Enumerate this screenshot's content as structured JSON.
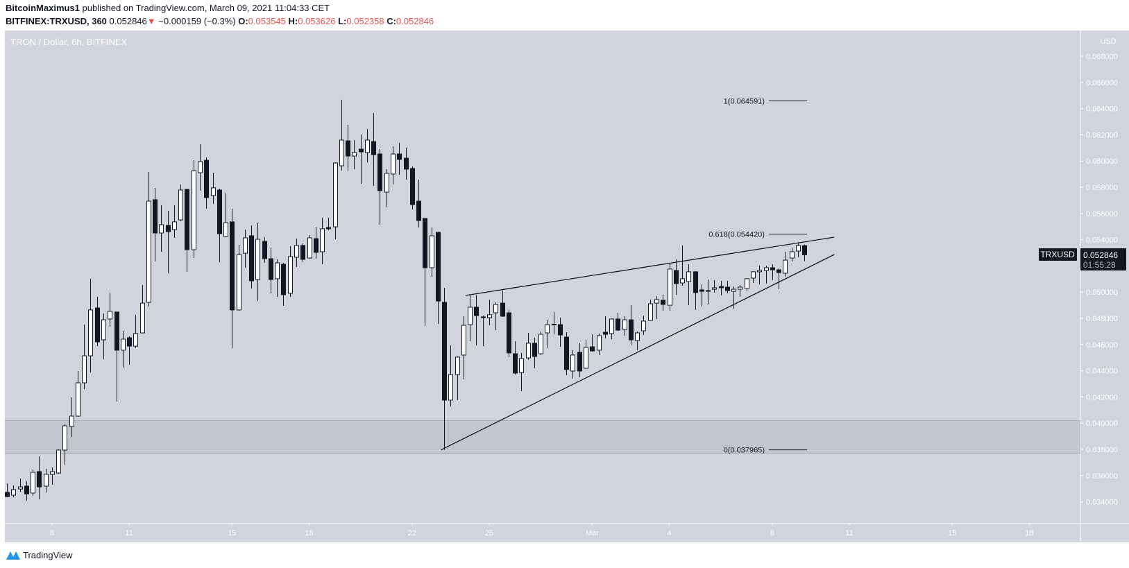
{
  "header": {
    "author": "BitcoinMaximus1",
    "published": "published on TradingView.com, March 09, 2021 11:04:33 CET",
    "symbol": "BITFINEX:TRXUSD, 360",
    "last": "0.052846",
    "change": "−0.000159 (−0.3%)",
    "change_icon": "triangle-down-icon",
    "o_label": "O:",
    "o": "0.053545",
    "h_label": "H:",
    "h": "0.053626",
    "l_label": "L:",
    "l": "0.052358",
    "c_label": "C:",
    "c": "0.052846"
  },
  "colors": {
    "background": "#d1d4dc",
    "zone": "#c4c6cf",
    "candle_up": "#ffffff",
    "candle_down": "#131722",
    "negative": "#ef5350",
    "axis_text": "#ffffff",
    "logo": "#2196f3"
  },
  "footer": {
    "logo": "TradingView"
  },
  "chart_data": {
    "type": "candlestick",
    "title": "TRON / Dollar, 6h, BITFINEX",
    "currency_label": "USD",
    "ylim": [
      0.0325,
      0.0695
    ],
    "y_ticks": [
      "0.034000",
      "0.036000",
      "0.038000",
      "0.040000",
      "0.042000",
      "0.044000",
      "0.046000",
      "0.048000",
      "0.050000",
      "0.054000",
      "0.056000",
      "0.058000",
      "0.060000",
      "0.062000",
      "0.064000",
      "0.066000",
      "0.068000"
    ],
    "x_ticks": [
      {
        "date": "2021-02-08",
        "label": "8"
      },
      {
        "date": "2021-02-11",
        "label": "11"
      },
      {
        "date": "2021-02-15",
        "label": "15"
      },
      {
        "date": "2021-02-18",
        "label": "18"
      },
      {
        "date": "2021-02-22",
        "label": "22"
      },
      {
        "date": "2021-02-25",
        "label": "25"
      },
      {
        "date": "2021-03-01",
        "label": "Mar"
      },
      {
        "date": "2021-03-04",
        "label": "4"
      },
      {
        "date": "2021-03-08",
        "label": "8"
      },
      {
        "date": "2021-03-11",
        "label": "11"
      },
      {
        "date": "2021-03-15",
        "label": "15"
      },
      {
        "date": "2021-03-18",
        "label": "18"
      }
    ],
    "last_price": {
      "symbol": "TRXUSD",
      "price": "0.052846",
      "countdown": "01:55:28"
    },
    "support_zone": [
      0.0377,
      0.0402
    ],
    "fib_levels": [
      {
        "ratio": "1",
        "value": 0.064591,
        "label": "1(0.064591)"
      },
      {
        "ratio": "0.618",
        "value": 0.05442,
        "label": "0.618(0.054420)"
      },
      {
        "ratio": "0",
        "value": 0.037965,
        "label": "0(0.037965)"
      }
    ],
    "trendlines": [
      {
        "name": "wedge-resistance",
        "from": [
          "2021-02-24 02:00",
          0.049746
        ],
        "to": [
          "2021-03-10 10:00",
          0.05419
        ]
      },
      {
        "name": "wedge-support",
        "from": [
          "2021-02-23 03:00",
          0.037965
        ],
        "to": [
          "2021-03-10 10:00",
          0.052868
        ]
      }
    ],
    "columns": [
      "time",
      "open",
      "high",
      "low",
      "close"
    ],
    "candles": [
      [
        "2021-02-06 06:00",
        0.03472,
        0.03541,
        0.03435,
        0.0344
      ],
      [
        "2021-02-06 12:00",
        0.03451,
        0.03525,
        0.03435,
        0.03493
      ],
      [
        "2021-02-06 18:00",
        0.03498,
        0.03578,
        0.03477,
        0.03514
      ],
      [
        "2021-02-07 00:00",
        0.0352,
        0.03557,
        0.03409,
        0.03461
      ],
      [
        "2021-02-07 06:00",
        0.03467,
        0.03647,
        0.03446,
        0.03625
      ],
      [
        "2021-02-07 12:00",
        0.03631,
        0.03747,
        0.03419,
        0.03514
      ],
      [
        "2021-02-07 18:00",
        0.0352,
        0.03652,
        0.03472,
        0.0361
      ],
      [
        "2021-02-08 00:00",
        0.0361,
        0.03663,
        0.0353,
        0.03631
      ],
      [
        "2021-02-08 06:00",
        0.0362,
        0.038,
        0.03615,
        0.03795
      ],
      [
        "2021-02-08 12:00",
        0.03795,
        0.03991,
        0.03684,
        0.0398
      ],
      [
        "2021-02-08 18:00",
        0.03975,
        0.04197,
        0.03895,
        0.04054
      ],
      [
        "2021-02-09 00:00",
        0.04054,
        0.04398,
        0.04049,
        0.04308
      ],
      [
        "2021-02-09 06:00",
        0.04308,
        0.04752,
        0.0426,
        0.04514
      ],
      [
        "2021-02-09 12:00",
        0.04514,
        0.05102,
        0.04387,
        0.04864
      ],
      [
        "2021-02-09 18:00",
        0.04879,
        0.04964,
        0.04588,
        0.0462
      ],
      [
        "2021-02-10 00:00",
        0.04636,
        0.04837,
        0.04488,
        0.04789
      ],
      [
        "2021-02-10 06:00",
        0.04795,
        0.04996,
        0.04737,
        0.04853
      ],
      [
        "2021-02-10 12:00",
        0.04848,
        0.04853,
        0.04165,
        0.04557
      ],
      [
        "2021-02-10 18:00",
        0.04557,
        0.04705,
        0.04424,
        0.04641
      ],
      [
        "2021-02-11 00:00",
        0.04652,
        0.04663,
        0.04446,
        0.04588
      ],
      [
        "2021-02-11 06:00",
        0.04588,
        0.04827,
        0.04573,
        0.04684
      ],
      [
        "2021-02-11 12:00",
        0.04689,
        0.05054,
        0.04684,
        0.04916
      ],
      [
        "2021-02-11 18:00",
        0.04922,
        0.05916,
        0.0489,
        0.05694
      ],
      [
        "2021-02-12 00:00",
        0.05705,
        0.05795,
        0.05234,
        0.05451
      ],
      [
        "2021-02-12 06:00",
        0.05451,
        0.05663,
        0.05308,
        0.05514
      ],
      [
        "2021-02-12 12:00",
        0.05509,
        0.0562,
        0.05144,
        0.05461
      ],
      [
        "2021-02-12 18:00",
        0.05477,
        0.05663,
        0.05414,
        0.05536
      ],
      [
        "2021-02-13 00:00",
        0.05551,
        0.05821,
        0.05541,
        0.05779
      ],
      [
        "2021-02-13 06:00",
        0.05784,
        0.05784,
        0.05155,
        0.05324
      ],
      [
        "2021-02-13 12:00",
        0.05324,
        0.06006,
        0.0526,
        0.05927
      ],
      [
        "2021-02-13 18:00",
        0.05911,
        0.06128,
        0.05774,
        0.05996
      ],
      [
        "2021-02-14 00:00",
        0.06006,
        0.06028,
        0.05636,
        0.05721
      ],
      [
        "2021-02-14 06:00",
        0.05737,
        0.05911,
        0.05673,
        0.05795
      ],
      [
        "2021-02-14 12:00",
        0.05779,
        0.05789,
        0.05229,
        0.05446
      ],
      [
        "2021-02-14 18:00",
        0.05424,
        0.05758,
        0.05419,
        0.0553
      ],
      [
        "2021-02-15 00:00",
        0.05536,
        0.05636,
        0.04573,
        0.04864
      ],
      [
        "2021-02-15 06:00",
        0.04864,
        0.05361,
        0.04858,
        0.05287
      ],
      [
        "2021-02-15 12:00",
        0.05297,
        0.05477,
        0.05186,
        0.05414
      ],
      [
        "2021-02-15 18:00",
        0.0543,
        0.05509,
        0.05028,
        0.05086
      ],
      [
        "2021-02-16 00:00",
        0.05096,
        0.0553,
        0.04932,
        0.05403
      ],
      [
        "2021-02-16 06:00",
        0.05387,
        0.05419,
        0.05223,
        0.05255
      ],
      [
        "2021-02-16 12:00",
        0.05255,
        0.0534,
        0.04991,
        0.05096
      ],
      [
        "2021-02-16 18:00",
        0.05102,
        0.0525,
        0.04964,
        0.05223
      ],
      [
        "2021-02-17 00:00",
        0.05213,
        0.05223,
        0.04895,
        0.0498
      ],
      [
        "2021-02-17 06:00",
        0.04991,
        0.0535,
        0.04964,
        0.05271
      ],
      [
        "2021-02-17 12:00",
        0.05266,
        0.05408,
        0.05192,
        0.05356
      ],
      [
        "2021-02-17 18:00",
        0.05356,
        0.05372,
        0.05229,
        0.0525
      ],
      [
        "2021-02-18 00:00",
        0.0526,
        0.05435,
        0.05255,
        0.05414
      ],
      [
        "2021-02-18 06:00",
        0.05408,
        0.05498,
        0.05255,
        0.05303
      ],
      [
        "2021-02-18 12:00",
        0.05308,
        0.05567,
        0.05213,
        0.05483
      ],
      [
        "2021-02-18 18:00",
        0.05493,
        0.05567,
        0.05472,
        0.05483
      ],
      [
        "2021-02-19 00:00",
        0.05498,
        0.0599,
        0.05403,
        0.05985
      ],
      [
        "2021-02-19 06:00",
        0.05964,
        0.06467,
        0.05927,
        0.0616
      ],
      [
        "2021-02-19 12:00",
        0.06154,
        0.06276,
        0.05927,
        0.06038
      ],
      [
        "2021-02-19 18:00",
        0.06038,
        0.0616,
        0.05938,
        0.06065
      ],
      [
        "2021-02-20 00:00",
        0.06091,
        0.06202,
        0.05826,
        0.0607
      ],
      [
        "2021-02-20 06:00",
        0.06065,
        0.06244,
        0.0599,
        0.0616
      ],
      [
        "2021-02-20 12:00",
        0.06149,
        0.06366,
        0.05811,
        0.06049
      ],
      [
        "2021-02-20 18:00",
        0.06054,
        0.06091,
        0.05514,
        0.05774
      ],
      [
        "2021-02-21 00:00",
        0.05763,
        0.05938,
        0.05647,
        0.05906
      ],
      [
        "2021-02-21 06:00",
        0.05901,
        0.06112,
        0.05821,
        0.06054
      ],
      [
        "2021-02-21 12:00",
        0.06054,
        0.06139,
        0.05895,
        0.06012
      ],
      [
        "2021-02-21 18:00",
        0.06022,
        0.06102,
        0.05858,
        0.05938
      ],
      [
        "2021-02-22 00:00",
        0.05943,
        0.05959,
        0.05631,
        0.05668
      ],
      [
        "2021-02-22 06:00",
        0.05694,
        0.05858,
        0.05493,
        0.05546
      ],
      [
        "2021-02-22 12:00",
        0.05562,
        0.05562,
        0.04742,
        0.05186
      ],
      [
        "2021-02-22 18:00",
        0.05186,
        0.05493,
        0.05117,
        0.0543
      ],
      [
        "2021-02-23 00:00",
        0.05456,
        0.05461,
        0.04758,
        0.04932
      ],
      [
        "2021-02-23 06:00",
        0.04922,
        0.05033,
        0.03797,
        0.04176
      ],
      [
        "2021-02-23 12:00",
        0.04176,
        0.04594,
        0.04128,
        0.04371
      ],
      [
        "2021-02-23 18:00",
        0.04371,
        0.0451,
        0.04176,
        0.04504
      ],
      [
        "2021-02-24 00:00",
        0.0452,
        0.04816,
        0.04334,
        0.04747
      ],
      [
        "2021-02-24 06:00",
        0.04752,
        0.0498,
        0.04625,
        0.04885
      ],
      [
        "2021-02-24 12:00",
        0.04885,
        0.0498,
        0.04594,
        0.04821
      ],
      [
        "2021-02-24 18:00",
        0.04811,
        0.04821,
        0.04588,
        0.04805
      ],
      [
        "2021-02-25 00:00",
        0.04805,
        0.04943,
        0.04747,
        0.04827
      ],
      [
        "2021-02-25 06:00",
        0.04842,
        0.04922,
        0.0471,
        0.04906
      ],
      [
        "2021-02-25 12:00",
        0.04916,
        0.05012,
        0.04811,
        0.04816
      ],
      [
        "2021-02-25 18:00",
        0.04842,
        0.04869,
        0.04504,
        0.04536
      ],
      [
        "2021-02-26 00:00",
        0.0453,
        0.04625,
        0.04371,
        0.04382
      ],
      [
        "2021-02-26 06:00",
        0.04387,
        0.04536,
        0.04245,
        0.04493
      ],
      [
        "2021-02-26 12:00",
        0.04498,
        0.04689,
        0.04483,
        0.0461
      ],
      [
        "2021-02-26 18:00",
        0.0461,
        0.04652,
        0.04419,
        0.04509
      ],
      [
        "2021-02-27 00:00",
        0.0453,
        0.047,
        0.0452,
        0.04678
      ],
      [
        "2021-02-27 06:00",
        0.04689,
        0.04789,
        0.04573,
        0.04752
      ],
      [
        "2021-02-27 12:00",
        0.04752,
        0.04848,
        0.04678,
        0.04755
      ],
      [
        "2021-02-27 18:00",
        0.04752,
        0.04805,
        0.04583,
        0.04673
      ],
      [
        "2021-02-28 00:00",
        0.04657,
        0.04694,
        0.04366,
        0.04409
      ],
      [
        "2021-02-28 06:00",
        0.04398,
        0.04557,
        0.0434,
        0.0452
      ],
      [
        "2021-02-28 12:00",
        0.04541,
        0.0461,
        0.0435,
        0.04398
      ],
      [
        "2021-02-28 18:00",
        0.04419,
        0.04636,
        0.04415,
        0.04578
      ],
      [
        "2021-03-01 00:00",
        0.04583,
        0.04678,
        0.04546,
        0.04551
      ],
      [
        "2021-03-01 06:00",
        0.04557,
        0.04684,
        0.0452,
        0.04668
      ],
      [
        "2021-03-01 12:00",
        0.04694,
        0.04816,
        0.04647,
        0.04678
      ],
      [
        "2021-03-01 18:00",
        0.04684,
        0.048,
        0.04641,
        0.04795
      ],
      [
        "2021-03-02 00:00",
        0.04795,
        0.04842,
        0.04705,
        0.0471
      ],
      [
        "2021-03-02 06:00",
        0.04715,
        0.04816,
        0.04668,
        0.04789
      ],
      [
        "2021-03-02 12:00",
        0.04789,
        0.049,
        0.04594,
        0.04636
      ],
      [
        "2021-03-02 18:00",
        0.04631,
        0.047,
        0.04557,
        0.04689
      ],
      [
        "2021-03-03 00:00",
        0.04705,
        0.04821,
        0.04673,
        0.04779
      ],
      [
        "2021-03-03 06:00",
        0.04784,
        0.04943,
        0.0478,
        0.04911
      ],
      [
        "2021-03-03 12:00",
        0.04916,
        0.04969,
        0.04795,
        0.04943
      ],
      [
        "2021-03-03 18:00",
        0.04938,
        0.0498,
        0.04858,
        0.04906
      ],
      [
        "2021-03-04 00:00",
        0.049,
        0.05218,
        0.04858,
        0.05176
      ],
      [
        "2021-03-04 06:00",
        0.05165,
        0.0525,
        0.0498,
        0.05065
      ],
      [
        "2021-03-04 12:00",
        0.0507,
        0.05356,
        0.05049,
        0.05102
      ],
      [
        "2021-03-04 18:00",
        0.05081,
        0.05213,
        0.049,
        0.05155
      ],
      [
        "2021-03-05 00:00",
        0.05155,
        0.0516,
        0.04864,
        0.04996
      ],
      [
        "2021-03-05 06:00",
        0.05017,
        0.05059,
        0.0489,
        0.05006
      ],
      [
        "2021-03-05 12:00",
        0.05012,
        0.05096,
        0.04906,
        0.05006
      ],
      [
        "2021-03-05 18:00",
        0.05022,
        0.05091,
        0.04996,
        0.05033
      ],
      [
        "2021-03-06 00:00",
        0.05043,
        0.05086,
        0.04975,
        0.05033
      ],
      [
        "2021-03-06 06:00",
        0.05038,
        0.05086,
        0.04991,
        0.05012
      ],
      [
        "2021-03-06 12:00",
        0.05006,
        0.05043,
        0.04874,
        0.05022
      ],
      [
        "2021-03-06 18:00",
        0.05022,
        0.05054,
        0.04964,
        0.05038
      ],
      [
        "2021-03-07 00:00",
        0.05027,
        0.05105,
        0.05006,
        0.05102
      ],
      [
        "2021-03-07 06:00",
        0.05107,
        0.0516,
        0.0507,
        0.05155
      ],
      [
        "2021-03-07 12:00",
        0.05155,
        0.05202,
        0.05059,
        0.05165
      ],
      [
        "2021-03-07 18:00",
        0.05165,
        0.05202,
        0.05065,
        0.05186
      ],
      [
        "2021-03-08 00:00",
        0.05186,
        0.05213,
        0.05091,
        0.0517
      ],
      [
        "2021-03-08 06:00",
        0.0517,
        0.05181,
        0.05022,
        0.05149
      ],
      [
        "2021-03-08 12:00",
        0.05144,
        0.05308,
        0.05117,
        0.05244
      ],
      [
        "2021-03-08 18:00",
        0.0526,
        0.0534,
        0.05234,
        0.05308
      ],
      [
        "2021-03-09 00:00",
        0.05313,
        0.05382,
        0.05266,
        0.05356
      ],
      [
        "2021-03-09 06:00",
        0.053545,
        0.053626,
        0.052358,
        0.052846
      ]
    ]
  }
}
